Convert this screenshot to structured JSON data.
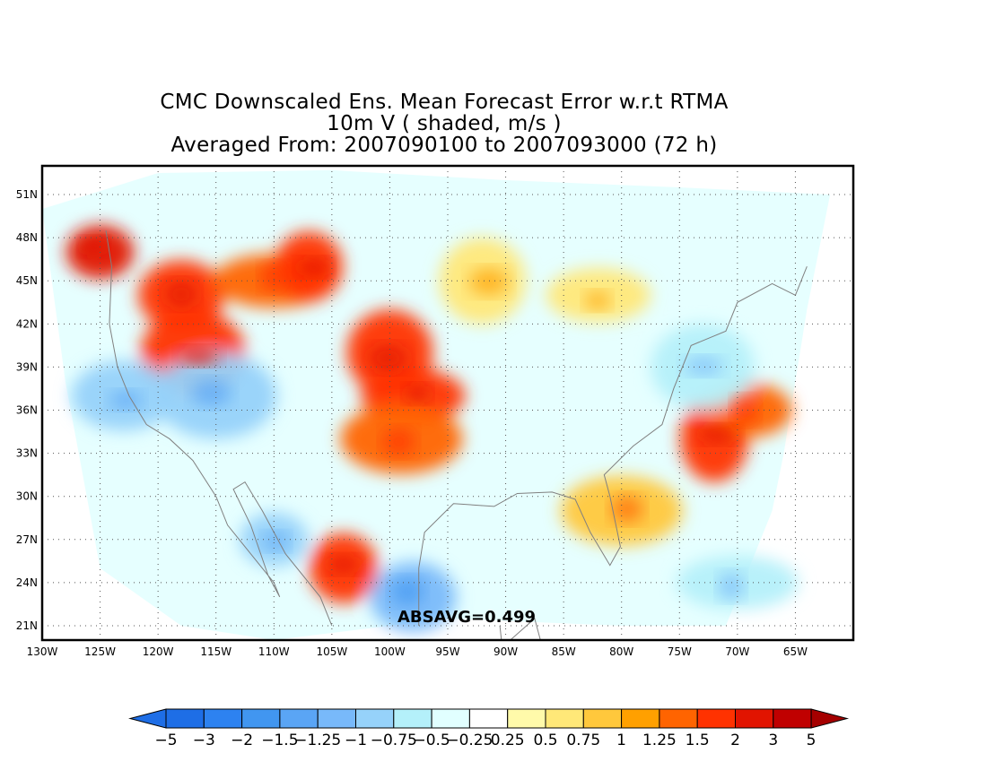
{
  "title": {
    "line1": "CMC Downscaled Ens. Mean Forecast Error w.r.t RTMA",
    "line2": "10m V ( shaded, m/s )",
    "line3": "Averaged From: 2007090100 to 2007093000 (72 h)"
  },
  "map": {
    "lon_range": [
      -130,
      -60
    ],
    "lat_range": [
      20,
      53
    ],
    "lon_ticks": [
      "130W",
      "125W",
      "120W",
      "115W",
      "110W",
      "105W",
      "100W",
      "95W",
      "90W",
      "85W",
      "80W",
      "75W",
      "70W",
      "65W"
    ],
    "lat_ticks": [
      "21N",
      "24N",
      "27N",
      "30N",
      "33N",
      "36N",
      "39N",
      "42N",
      "45N",
      "48N",
      "51N"
    ],
    "grid": "dotted",
    "annotation": "ABSAVG=0.499"
  },
  "colorbar": {
    "labels": [
      "-5",
      "-3",
      "-2",
      "-1.5",
      "-1.25",
      "-1",
      "-0.75",
      "-0.5",
      "-0.25",
      "0.25",
      "0.5",
      "0.75",
      "1",
      "1.25",
      "1.5",
      "2",
      "3",
      "5"
    ],
    "colors": [
      "#1e6ee6",
      "#1e6ee6",
      "#2d82f0",
      "#4196f0",
      "#5aa5f5",
      "#78b9fa",
      "#96d2fa",
      "#b4f0fa",
      "#e1ffff",
      "#ffffff",
      "#fffaaa",
      "#ffe878",
      "#ffc83c",
      "#ffa000",
      "#ff6400",
      "#ff3200",
      "#e11400",
      "#c00000",
      "#a50000"
    ]
  },
  "field_regions": [
    {
      "lon": -125,
      "lat": 47,
      "value": 2
    },
    {
      "lon": -118,
      "lat": 44,
      "value": 1.5
    },
    {
      "lon": -117,
      "lat": 40,
      "value": 1.5
    },
    {
      "lon": -110,
      "lat": 45,
      "value": 1.25
    },
    {
      "lon": -107,
      "lat": 46,
      "value": 1.5
    },
    {
      "lon": -100,
      "lat": 40,
      "value": 1.5
    },
    {
      "lon": -98,
      "lat": 37,
      "value": 1.5
    },
    {
      "lon": -99,
      "lat": 34,
      "value": 1.25
    },
    {
      "lon": -72,
      "lat": 34,
      "value": 1.5
    },
    {
      "lon": -69,
      "lat": 36,
      "value": 1.25
    },
    {
      "lon": -123,
      "lat": 37,
      "value": -1
    },
    {
      "lon": -115,
      "lat": 37,
      "value": -1
    },
    {
      "lon": -110,
      "lat": 27,
      "value": -1
    },
    {
      "lon": -98,
      "lat": 23,
      "value": -1.25
    },
    {
      "lon": -73,
      "lat": 39,
      "value": -0.75
    },
    {
      "lon": -70,
      "lat": 24,
      "value": -0.75
    },
    {
      "lon": -104,
      "lat": 25,
      "value": 1.5
    },
    {
      "lon": -92,
      "lat": 45,
      "value": 0.5
    },
    {
      "lon": -82,
      "lat": 44,
      "value": 0.5
    },
    {
      "lon": -80,
      "lat": 29,
      "value": 0.75
    }
  ]
}
